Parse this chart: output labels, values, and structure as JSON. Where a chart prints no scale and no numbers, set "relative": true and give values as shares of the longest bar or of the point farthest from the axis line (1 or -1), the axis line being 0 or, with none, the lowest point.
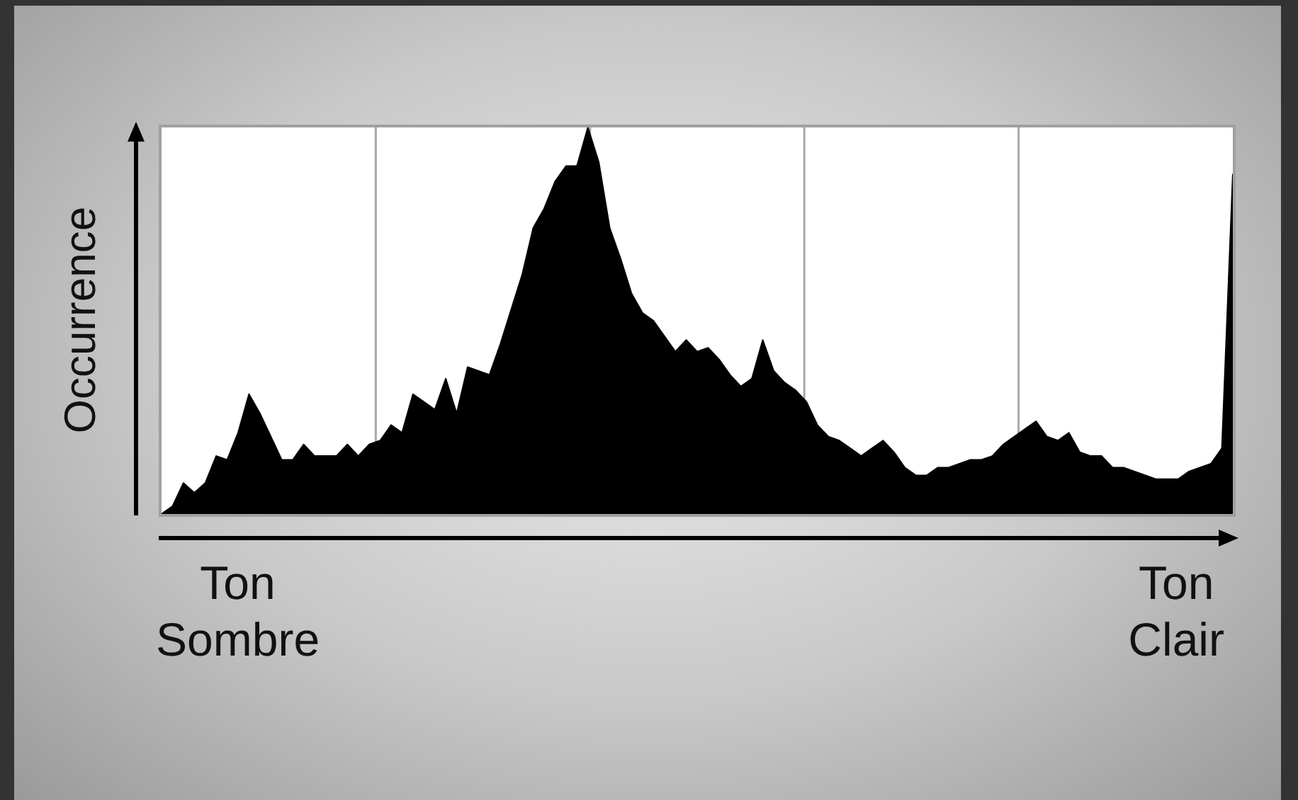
{
  "chart_data": {
    "type": "area",
    "relative": true,
    "ylabel": "Occurrence",
    "annotations": [
      "Ton\nSombre",
      "Ton\nClair"
    ],
    "categories": [
      null,
      null,
      null,
      null,
      null,
      null,
      null,
      null,
      null,
      null,
      null,
      null,
      null,
      null,
      null,
      null,
      null,
      null,
      null,
      null,
      null,
      null,
      null,
      null,
      null,
      null,
      null,
      null,
      null,
      null,
      null,
      null,
      null,
      null,
      null,
      null,
      null,
      null,
      null,
      null,
      null,
      null,
      null,
      null,
      null,
      null,
      null,
      null,
      null,
      null,
      null,
      null,
      null,
      null,
      null,
      null,
      null,
      null,
      null,
      null,
      null,
      null,
      null,
      null,
      null,
      null,
      null,
      null,
      null,
      null,
      null,
      null,
      null,
      null,
      null,
      null,
      null,
      null,
      null,
      null,
      null,
      null,
      null,
      null,
      null,
      null,
      null,
      null,
      null,
      null,
      null,
      null,
      null,
      null,
      null,
      null,
      null,
      null,
      null
    ],
    "values": [
      0,
      0.02,
      0.08,
      0.055,
      0.08,
      0.15,
      0.14,
      0.21,
      0.31,
      0.26,
      0.2,
      0.14,
      0.14,
      0.18,
      0.15,
      0.15,
      0.15,
      0.18,
      0.15,
      0.18,
      0.19,
      0.23,
      0.21,
      0.31,
      0.29,
      0.27,
      0.35,
      0.26,
      0.38,
      0.37,
      0.36,
      0.44,
      0.53,
      0.62,
      0.74,
      0.79,
      0.86,
      0.9,
      0.9,
      1.0,
      0.91,
      0.74,
      0.66,
      0.57,
      0.52,
      0.5,
      0.46,
      0.42,
      0.45,
      0.42,
      0.43,
      0.4,
      0.36,
      0.33,
      0.35,
      0.45,
      0.37,
      0.34,
      0.32,
      0.29,
      0.23,
      0.2,
      0.19,
      0.17,
      0.15,
      0.17,
      0.19,
      0.16,
      0.12,
      0.1,
      0.1,
      0.12,
      0.12,
      0.13,
      0.14,
      0.14,
      0.15,
      0.18,
      0.2,
      0.22,
      0.24,
      0.2,
      0.19,
      0.21,
      0.16,
      0.15,
      0.15,
      0.12,
      0.12,
      0.11,
      0.1,
      0.09,
      0.09,
      0.09,
      0.11,
      0.12,
      0.13,
      0.17,
      0.88
    ],
    "color": "#000000",
    "grid": "x"
  }
}
